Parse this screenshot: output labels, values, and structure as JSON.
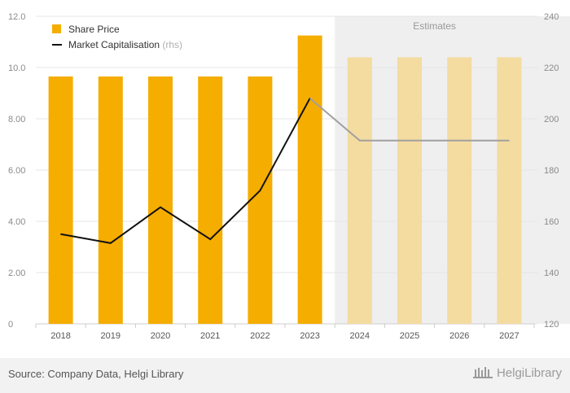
{
  "chart_data": {
    "type": "bar",
    "categories": [
      "2018",
      "2019",
      "2020",
      "2021",
      "2022",
      "2023",
      "2024",
      "2025",
      "2026",
      "2027"
    ],
    "series": [
      {
        "name": "Share Price",
        "type": "bar",
        "axis": "left",
        "values": [
          9.65,
          9.65,
          9.65,
          9.65,
          9.65,
          11.25,
          10.4,
          10.4,
          10.4,
          10.4
        ],
        "color": "#f5ad00",
        "estimate_color": "#f4dba0"
      },
      {
        "name": "Market Capitalisation",
        "name_suffix": "(rhs)",
        "type": "line",
        "axis": "right",
        "values": [
          155,
          151.5,
          165.5,
          153,
          172,
          208,
          191.5,
          191.5,
          191.5,
          191.5
        ],
        "color": "#111111",
        "estimate_color": "#a0a0a0"
      }
    ],
    "y_left": {
      "ticks": [
        "0",
        "2.00",
        "4.00",
        "6.00",
        "8.00",
        "10.0",
        "12.0"
      ],
      "min": 0,
      "max": 12
    },
    "y_right": {
      "ticks": [
        "120",
        "140",
        "160",
        "180",
        "200",
        "220",
        "240"
      ],
      "min": 120,
      "max": 240
    },
    "estimates": {
      "label": "Estimates",
      "from_index": 6,
      "shade_color": "#efefef"
    },
    "grid": true,
    "legend_position": "top-left"
  },
  "footer": {
    "source": "Source: Company Data, Helgi Library",
    "brand": "HelgiLibrary"
  }
}
